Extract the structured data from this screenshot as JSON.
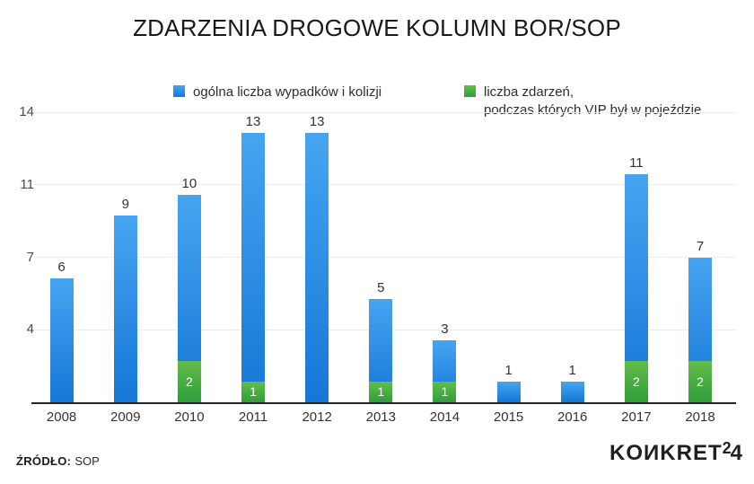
{
  "title": "ZDARZENIA DROGOWE KOLUMN BOR/SOP",
  "legend": {
    "series1_label": "ogólna liczba wypadków i kolizji",
    "series2_label_line1": "liczba zdarzeń,",
    "series2_label_line2": "podczas których VIP był w pojeździe"
  },
  "footer": {
    "source_label": "ŹRÓDŁO:",
    "source_value": "SOP",
    "logo_main": "KOИKRET",
    "logo_sup": "2",
    "logo_last": "4"
  },
  "colors": {
    "bar_blue_top": "#46a5f1",
    "bar_blue_bottom": "#1577d6",
    "bar_green_top": "#63bd49",
    "bar_green_bottom": "#2f9e3b",
    "axis_line": "#222222",
    "gridline": "#ececec",
    "text": "#333333"
  },
  "chart_data": {
    "type": "bar",
    "stacked_overlay": true,
    "title": "ZDARZENIA DROGOWE KOLUMN BOR/SOP",
    "categories": [
      "2008",
      "2009",
      "2010",
      "2011",
      "2012",
      "2013",
      "2014",
      "2015",
      "2016",
      "2017",
      "2018"
    ],
    "series": [
      {
        "name": "ogólna liczba wypadków i kolizji",
        "role": "total",
        "color": "blue",
        "values": [
          6,
          9,
          10,
          13,
          13,
          5,
          3,
          1,
          1,
          11,
          7
        ]
      },
      {
        "name": "liczba zdarzeń, podczas których VIP był w pojeździe",
        "role": "vip-subset",
        "color": "green",
        "values": [
          0,
          0,
          2,
          1,
          0,
          1,
          1,
          0,
          0,
          2,
          2
        ]
      }
    ],
    "value_labels": "totals above bars, vip counts inside green segments",
    "xlabel": "",
    "ylabel": "",
    "ylim": [
      0,
      14.3
    ],
    "y_ticks": [
      {
        "label": "14",
        "value": 14
      },
      {
        "label": "11",
        "value": 10.5
      },
      {
        "label": "7",
        "value": 7
      },
      {
        "label": "4",
        "value": 3.5
      }
    ],
    "grid": "horizontal",
    "legend_position": "top"
  }
}
